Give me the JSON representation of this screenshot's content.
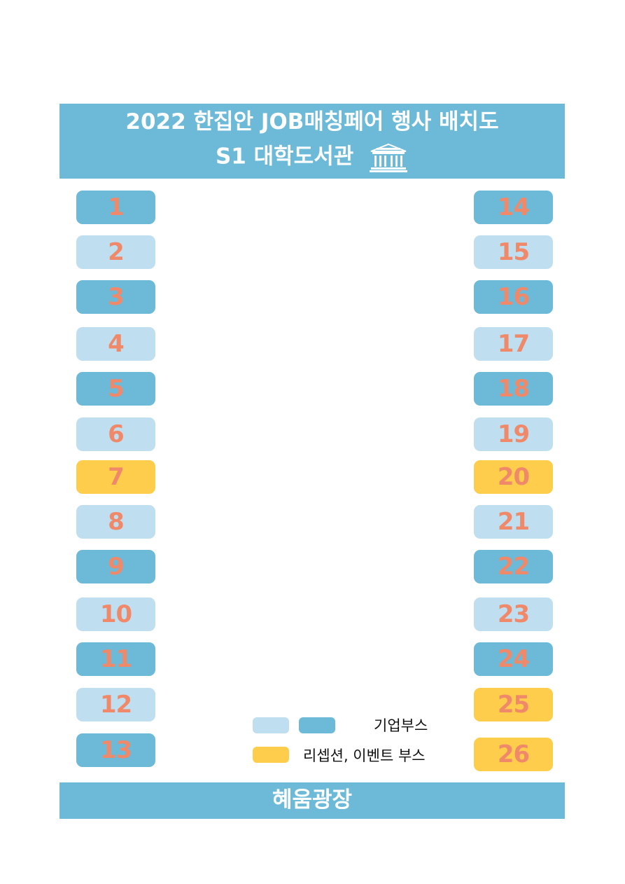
{
  "header": {
    "line1": "2022 한집안 JOB매칭페어 행사 배치도",
    "line2": "S1 대학도서관",
    "icon": "library-building-icon"
  },
  "colors": {
    "header_bg": "#6cb9d8",
    "booth_dark": "#6cb9d8",
    "booth_light": "#bfdff0",
    "booth_event": "#fecd4b",
    "booth_number": "#f0896a"
  },
  "booths_left": [
    {
      "label": "1",
      "kind": "dark"
    },
    {
      "label": "2",
      "kind": "light"
    },
    {
      "label": "3",
      "kind": "dark"
    },
    {
      "label": "4",
      "kind": "light"
    },
    {
      "label": "5",
      "kind": "dark"
    },
    {
      "label": "6",
      "kind": "light"
    },
    {
      "label": "7",
      "kind": "yellow"
    },
    {
      "label": "8",
      "kind": "light"
    },
    {
      "label": "9",
      "kind": "dark"
    },
    {
      "label": "10",
      "kind": "light"
    },
    {
      "label": "11",
      "kind": "dark"
    },
    {
      "label": "12",
      "kind": "light"
    },
    {
      "label": "13",
      "kind": "dark"
    }
  ],
  "booths_right": [
    {
      "label": "14",
      "kind": "dark"
    },
    {
      "label": "15",
      "kind": "light"
    },
    {
      "label": "16",
      "kind": "dark"
    },
    {
      "label": "17",
      "kind": "light"
    },
    {
      "label": "18",
      "kind": "dark"
    },
    {
      "label": "19",
      "kind": "light"
    },
    {
      "label": "20",
      "kind": "yellow"
    },
    {
      "label": "21",
      "kind": "light"
    },
    {
      "label": "22",
      "kind": "dark"
    },
    {
      "label": "23",
      "kind": "light"
    },
    {
      "label": "24",
      "kind": "dark"
    },
    {
      "label": "25",
      "kind": "yellow"
    },
    {
      "label": "26",
      "kind": "yellow"
    }
  ],
  "legend": {
    "company": "기업부스",
    "event": "리셉션, 이벤트 부스"
  },
  "footer": {
    "label": "혜움광장"
  }
}
